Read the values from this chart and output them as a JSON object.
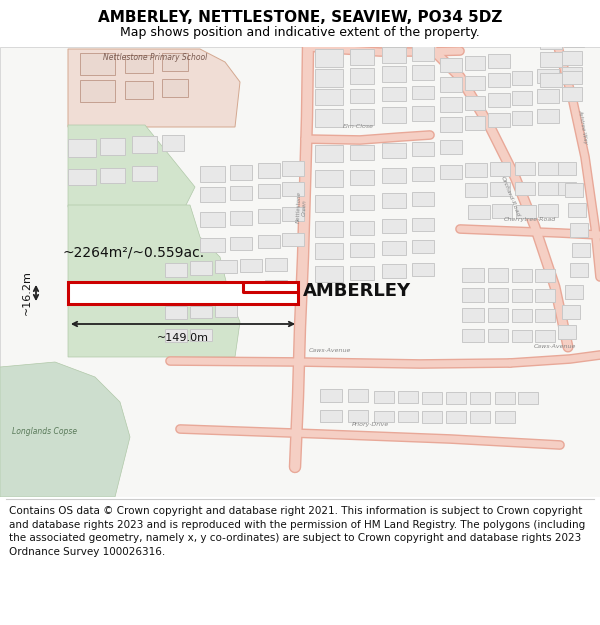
{
  "title": "AMBERLEY, NETTLESTONE, SEAVIEW, PO34 5DZ",
  "subtitle": "Map shows position and indicative extent of the property.",
  "footer": "Contains OS data © Crown copyright and database right 2021. This information is subject to Crown copyright and database rights 2023 and is reproduced with the permission of HM Land Registry. The polygons (including the associated geometry, namely x, y co-ordinates) are subject to Crown copyright and database rights 2023 Ordnance Survey 100026316.",
  "property_label": "AMBERLEY",
  "area_label": "~2264m²/~0.559ac.",
  "width_label": "~149.0m",
  "height_label": "~16.2m",
  "bg_color": "#ffffff",
  "map_bg": "#f7f7f5",
  "road_fill": "#f5cfc4",
  "road_outline": "#e8a898",
  "building_fill": "#e8e8e8",
  "building_outline": "#cccccc",
  "green_fill": "#cddece",
  "school_fill": "#f0ddd5",
  "highlight_outline": "#cc0000",
  "dim_color": "#222222",
  "label_gray": "#888888",
  "title_fontsize": 11,
  "subtitle_fontsize": 9,
  "footer_fontsize": 7.5,
  "map_border": "#cccccc"
}
